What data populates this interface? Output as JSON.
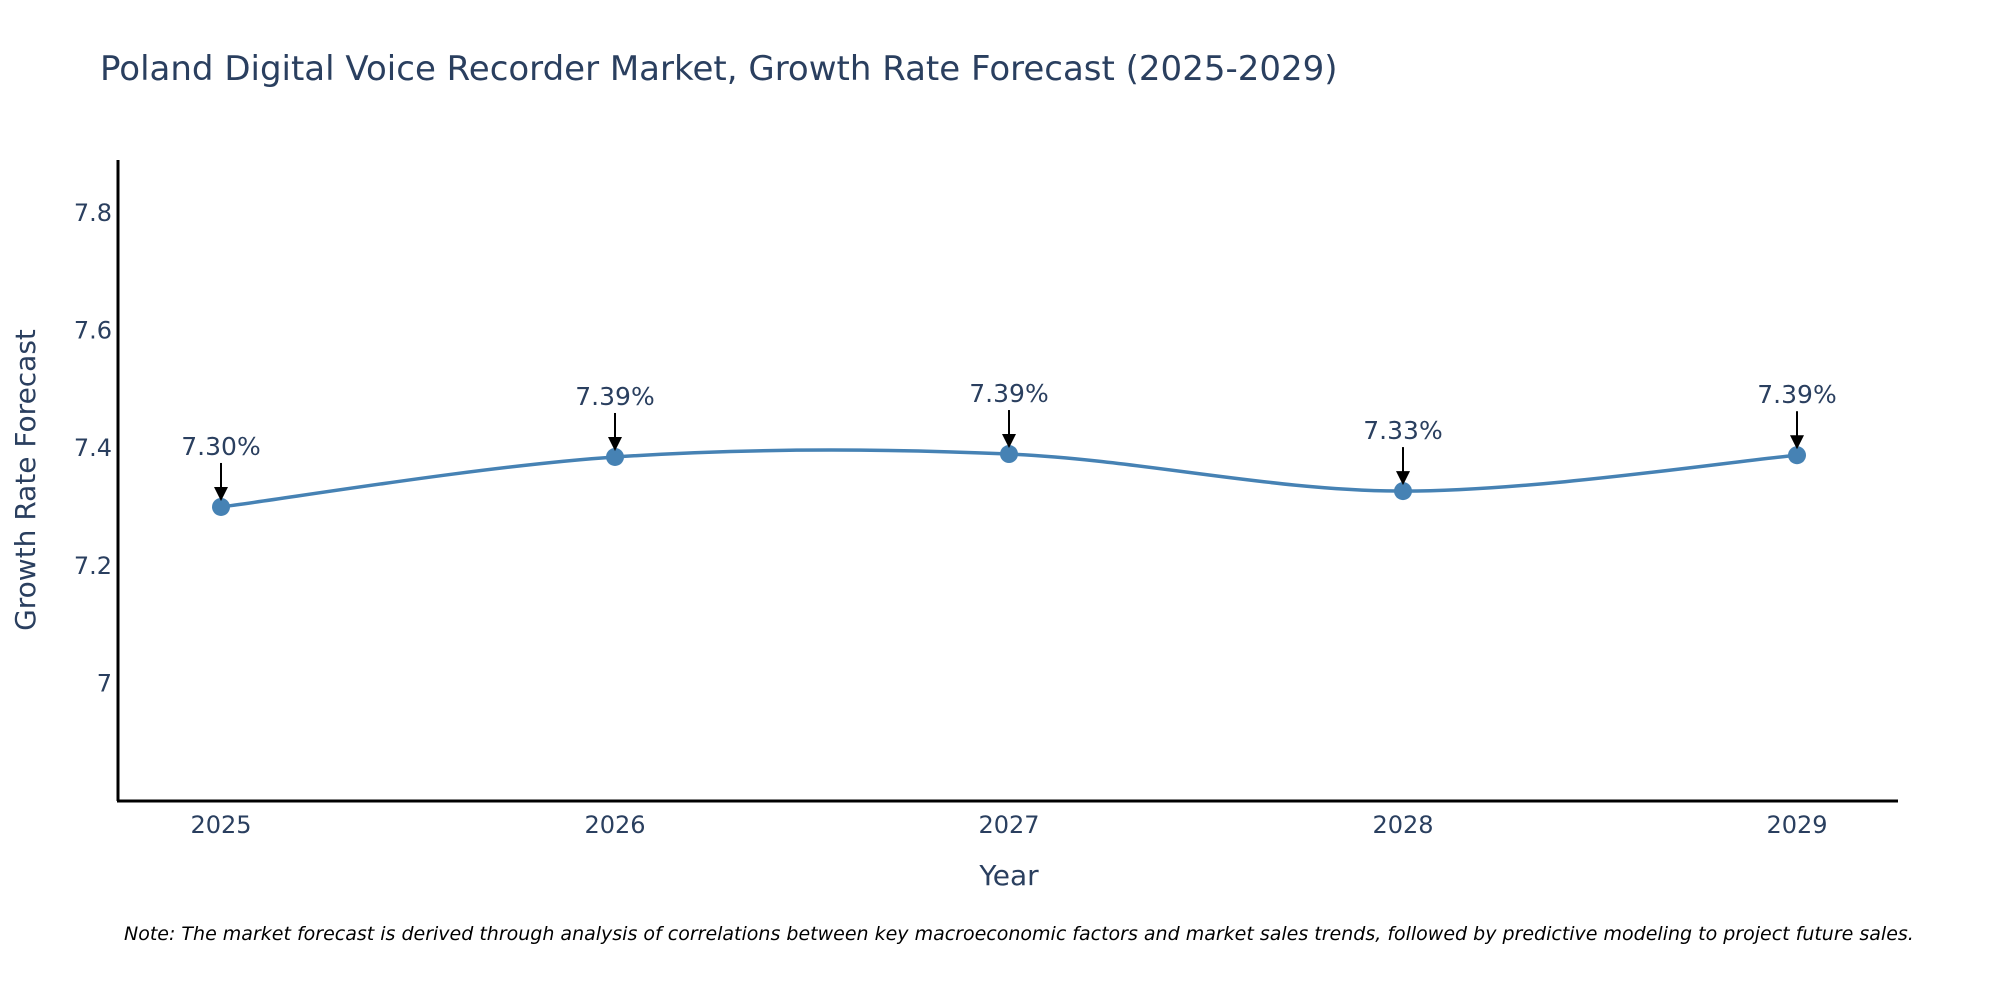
{
  "chart_data": {
    "type": "line",
    "title": "Poland Digital Voice Recorder Market, Growth Rate Forecast (2025-2029)",
    "xlabel": "Year",
    "ylabel": "Growth Rate Forecast",
    "categories": [
      "2025",
      "2026",
      "2027",
      "2028",
      "2029"
    ],
    "values": [
      7.3,
      7.385,
      7.39,
      7.327,
      7.388
    ],
    "data_labels": [
      "7.30%",
      "7.39%",
      "7.39%",
      "7.33%",
      "7.39%"
    ],
    "ylim": [
      6.8,
      7.89
    ],
    "yticks": [
      7.0,
      7.2,
      7.4,
      7.6,
      7.8
    ],
    "ytick_labels": [
      "7",
      "7.2",
      "7.4",
      "7.6",
      "7.8"
    ],
    "line_shape": "spline",
    "grid": false,
    "colors": {
      "line": "#4682b4",
      "marker": "#4682b4",
      "axis": "#000000",
      "text": "#2a3f5f"
    },
    "note": "Note: The market forecast is derived through analysis of correlations between key macroeconomic factors and market sales trends, followed by predictive modeling to project future sales."
  }
}
